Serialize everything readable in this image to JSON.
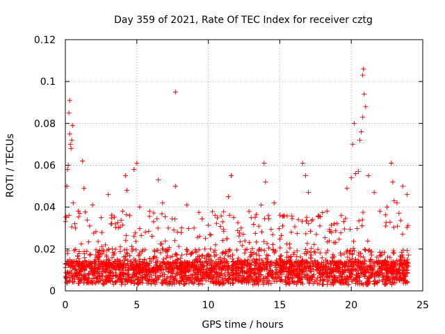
{
  "chart_data": {
    "type": "scatter",
    "title": "Day 359 of 2021, Rate Of TEC Index for receiver cztg",
    "xlabel": "GPS time / hours",
    "ylabel": "ROTI / TECUs",
    "xlim": [
      0,
      25
    ],
    "ylim": [
      0,
      0.12
    ],
    "x_ticks": [
      0,
      5,
      10,
      15,
      20,
      25
    ],
    "x_tick_labels": [
      "0",
      "5",
      "10",
      "15",
      "20",
      "25"
    ],
    "y_ticks": [
      0,
      0.02,
      0.04,
      0.06,
      0.08,
      0.1,
      0.12
    ],
    "y_tick_labels": [
      "0",
      "0.02",
      "0.04",
      "0.06",
      "0.08",
      "0.1",
      "0.12"
    ],
    "grid": true,
    "marker": "plus",
    "color": "#ff0000",
    "series": [
      {
        "name": "ROTI",
        "points": [
          [
            0.05,
            0.035
          ],
          [
            0.1,
            0.05
          ],
          [
            0.15,
            0.058
          ],
          [
            0.2,
            0.06
          ],
          [
            0.25,
            0.085
          ],
          [
            0.3,
            0.091
          ],
          [
            0.3,
            0.075
          ],
          [
            0.35,
            0.07
          ],
          [
            0.4,
            0.068
          ],
          [
            0.45,
            0.072
          ],
          [
            0.5,
            0.079
          ],
          [
            0.55,
            0.042
          ],
          [
            0.7,
            0.03
          ],
          [
            0.9,
            0.038
          ],
          [
            1.2,
            0.062
          ],
          [
            1.3,
            0.049
          ],
          [
            1.7,
            0.031
          ],
          [
            1.9,
            0.041
          ],
          [
            2.5,
            0.035
          ],
          [
            3.0,
            0.046
          ],
          [
            3.5,
            0.032
          ],
          [
            4.0,
            0.038
          ],
          [
            4.2,
            0.055
          ],
          [
            4.3,
            0.048
          ],
          [
            4.5,
            0.036
          ],
          [
            4.8,
            0.058
          ],
          [
            5.0,
            0.061
          ],
          [
            5.2,
            0.04
          ],
          [
            5.6,
            0.028
          ],
          [
            5.9,
            0.038
          ],
          [
            6.5,
            0.053
          ],
          [
            6.8,
            0.042
          ],
          [
            7.2,
            0.03
          ],
          [
            7.7,
            0.095
          ],
          [
            7.7,
            0.05
          ],
          [
            8.5,
            0.041
          ],
          [
            9.0,
            0.03
          ],
          [
            9.8,
            0.025
          ],
          [
            10.5,
            0.022
          ],
          [
            11.0,
            0.033
          ],
          [
            11.4,
            0.045
          ],
          [
            11.6,
            0.055
          ],
          [
            12.3,
            0.03
          ],
          [
            13.0,
            0.035
          ],
          [
            13.7,
            0.041
          ],
          [
            13.9,
            0.061
          ],
          [
            14.0,
            0.052
          ],
          [
            14.2,
            0.036
          ],
          [
            14.6,
            0.042
          ],
          [
            15.2,
            0.031
          ],
          [
            15.8,
            0.028
          ],
          [
            16.3,
            0.034
          ],
          [
            16.6,
            0.061
          ],
          [
            16.8,
            0.055
          ],
          [
            17.0,
            0.047
          ],
          [
            17.3,
            0.034
          ],
          [
            17.8,
            0.031
          ],
          [
            18.3,
            0.038
          ],
          [
            18.8,
            0.032
          ],
          [
            19.3,
            0.036
          ],
          [
            19.7,
            0.049
          ],
          [
            20.0,
            0.054
          ],
          [
            20.1,
            0.07
          ],
          [
            20.2,
            0.08
          ],
          [
            20.3,
            0.056
          ],
          [
            20.5,
            0.057
          ],
          [
            20.6,
            0.072
          ],
          [
            20.7,
            0.076
          ],
          [
            20.8,
            0.083
          ],
          [
            20.8,
            0.103
          ],
          [
            20.85,
            0.106
          ],
          [
            20.9,
            0.094
          ],
          [
            21.0,
            0.088
          ],
          [
            21.2,
            0.055
          ],
          [
            21.6,
            0.047
          ],
          [
            22.0,
            0.038
          ],
          [
            22.5,
            0.04
          ],
          [
            22.8,
            0.061
          ],
          [
            22.9,
            0.052
          ],
          [
            23.0,
            0.043
          ],
          [
            23.2,
            0.042
          ],
          [
            23.6,
            0.05
          ],
          [
            23.9,
            0.046
          ]
        ],
        "dense_band": {
          "x_start": 0,
          "x_end": 24,
          "description_values": {
            "typical_min": 0.003,
            "typical_max": 0.02,
            "center": 0.01
          }
        }
      }
    ]
  }
}
